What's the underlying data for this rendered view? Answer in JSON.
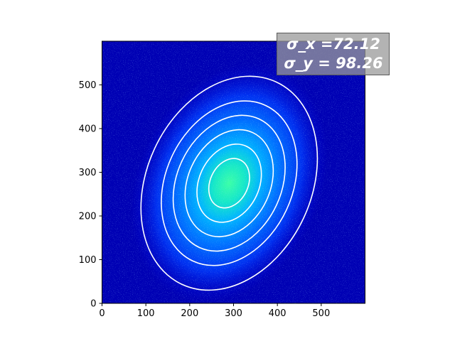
{
  "chart_data": {
    "type": "heatmap",
    "title": "",
    "xlabel": "",
    "ylabel": "",
    "xlim": [
      0,
      600
    ],
    "ylim": [
      0,
      600
    ],
    "x_ticks": [
      0,
      100,
      200,
      300,
      400,
      500
    ],
    "y_ticks": [
      0,
      100,
      200,
      300,
      400,
      500
    ],
    "colormap": "jet",
    "colors": {
      "background": "#0000b4",
      "core": "#20f0b0",
      "contour": "#ffffff",
      "annotation_box": "#9a9a9a"
    },
    "gaussian": {
      "center_x": 290,
      "center_y": 275,
      "sigma_x": 72.12,
      "sigma_y": 98.26,
      "rotation_deg": 25
    },
    "contour_levels_sigma": [
      0.6,
      0.95,
      1.3,
      1.65,
      2.0,
      2.6
    ],
    "annotation": {
      "line1": "σ_x =72.12",
      "line2": "σ_y = 98.26"
    }
  }
}
